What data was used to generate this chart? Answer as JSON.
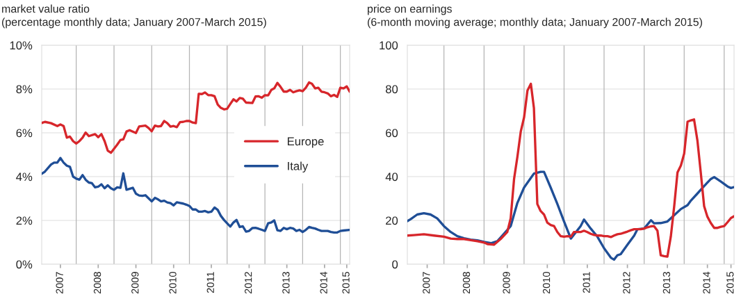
{
  "chart_data": [
    {
      "type": "line",
      "title": "market value ratio",
      "subtitle": "(percentage monthly data; January 2007-March 2015)",
      "xlim": [
        "2007-01",
        "2015-03"
      ],
      "xticks": [
        {
          "value": "2007-07",
          "label": "2007"
        },
        {
          "value": "2008-07",
          "label": "2008"
        },
        {
          "value": "2009-07",
          "label": "2009"
        },
        {
          "value": "2010-07",
          "label": "2010"
        },
        {
          "value": "2011-07",
          "label": "2011"
        },
        {
          "value": "2012-07",
          "label": "2012"
        },
        {
          "value": "2013-07",
          "label": "2013"
        },
        {
          "value": "2014-07",
          "label": "2014"
        },
        {
          "value": "2015-02",
          "label": "2015"
        }
      ],
      "ylim": [
        0,
        10
      ],
      "yticks": [
        {
          "value": 0,
          "label": "0%"
        },
        {
          "value": 2,
          "label": "2%"
        },
        {
          "value": 4,
          "label": "4%"
        },
        {
          "value": 6,
          "label": "6%"
        },
        {
          "value": 8,
          "label": "8%"
        },
        {
          "value": 10,
          "label": "10%"
        }
      ],
      "grid": "y",
      "legend": "center right",
      "ref_lines": [
        {
          "axis": "x",
          "value": "2007-12",
          "color": "#b4b4b4"
        },
        {
          "axis": "x",
          "value": "2008-12",
          "color": "#b4b4b4"
        },
        {
          "axis": "x",
          "value": "2009-12",
          "color": "#b4b4b4"
        },
        {
          "axis": "x",
          "value": "2010-12",
          "color": "#b4b4b4"
        },
        {
          "axis": "x",
          "value": "2011-12",
          "color": "#b4b4b4"
        },
        {
          "axis": "x",
          "value": "2012-12",
          "color": "#b4b4b4"
        },
        {
          "axis": "x",
          "value": "2013-12",
          "color": "#b4b4b4"
        },
        {
          "axis": "x",
          "value": "2014-12",
          "color": "#b4b4b4"
        }
      ],
      "series": [
        {
          "name": "Europe",
          "color": "#d7262b",
          "x": [
            "2007-01",
            "2007-02",
            "2007-04",
            "2007-06",
            "2007-07",
            "2007-08",
            "2007-09",
            "2007-10",
            "2007-11",
            "2007-12",
            "2008-01",
            "2008-02",
            "2008-03",
            "2008-04",
            "2008-06",
            "2008-07",
            "2008-08",
            "2008-09",
            "2008-10",
            "2008-11",
            "2009-01",
            "2009-02",
            "2009-03",
            "2009-04",
            "2009-05",
            "2009-07",
            "2009-08",
            "2009-10",
            "2009-11",
            "2009-12",
            "2010-01",
            "2010-02",
            "2010-03",
            "2010-04",
            "2010-05",
            "2010-06",
            "2010-07",
            "2010-08",
            "2010-09",
            "2010-10",
            "2010-11",
            "2010-12",
            "2011-01",
            "2011-02",
            "2011-03",
            "2011-04",
            "2011-05",
            "2011-06",
            "2011-07",
            "2011-08",
            "2011-09",
            "2011-10",
            "2011-11",
            "2011-12",
            "2012-01",
            "2012-02",
            "2012-03",
            "2012-04",
            "2012-05",
            "2012-06",
            "2012-08",
            "2012-09",
            "2012-10",
            "2012-11",
            "2012-12",
            "2013-01",
            "2013-02",
            "2013-03",
            "2013-04",
            "2013-05",
            "2013-06",
            "2013-07",
            "2013-08",
            "2013-09",
            "2013-10",
            "2013-11",
            "2013-12",
            "2014-01",
            "2014-02",
            "2014-03",
            "2014-04",
            "2014-05",
            "2014-06",
            "2014-07",
            "2014-08",
            "2014-09",
            "2014-10",
            "2014-11",
            "2014-12",
            "2015-01",
            "2015-02",
            "2015-03"
          ],
          "values": [
            6.45,
            6.5,
            6.44,
            6.31,
            6.38,
            6.31,
            5.78,
            5.83,
            5.62,
            5.51,
            5.62,
            5.78,
            6.01,
            5.85,
            5.94,
            5.8,
            5.94,
            5.62,
            5.19,
            5.09,
            5.46,
            5.67,
            5.7,
            6.06,
            6.12,
            5.99,
            6.29,
            6.33,
            6.22,
            6.07,
            6.33,
            6.29,
            6.31,
            6.54,
            6.44,
            6.28,
            6.31,
            6.26,
            6.49,
            6.5,
            6.54,
            6.54,
            6.47,
            6.44,
            7.78,
            7.77,
            7.84,
            7.72,
            7.72,
            7.67,
            7.29,
            7.14,
            7.07,
            7.1,
            7.32,
            7.53,
            7.43,
            7.59,
            7.56,
            7.38,
            7.36,
            7.66,
            7.67,
            7.6,
            7.72,
            7.71,
            7.96,
            8.03,
            8.28,
            8.1,
            7.88,
            7.88,
            7.96,
            7.85,
            7.9,
            7.94,
            7.9,
            8.06,
            8.3,
            8.24,
            8.03,
            8.06,
            7.88,
            7.85,
            7.8,
            7.67,
            7.73,
            7.64,
            8.06,
            8.03,
            8.12,
            7.88
          ]
        },
        {
          "name": "Italy",
          "color": "#1f4e96",
          "x": [
            "2007-01",
            "2007-02",
            "2007-04",
            "2007-05",
            "2007-06",
            "2007-07",
            "2007-08",
            "2007-09",
            "2007-10",
            "2007-11",
            "2007-12",
            "2008-01",
            "2008-02",
            "2008-03",
            "2008-04",
            "2008-05",
            "2008-06",
            "2008-07",
            "2008-08",
            "2008-09",
            "2008-10",
            "2008-11",
            "2008-12",
            "2009-01",
            "2009-02",
            "2009-03",
            "2009-04",
            "2009-06",
            "2009-07",
            "2009-08",
            "2009-09",
            "2009-10",
            "2009-11",
            "2009-12",
            "2010-01",
            "2010-02",
            "2010-03",
            "2010-04",
            "2010-05",
            "2010-06",
            "2010-07",
            "2010-08",
            "2010-09",
            "2010-10",
            "2010-11",
            "2010-12",
            "2011-01",
            "2011-02",
            "2011-03",
            "2011-04",
            "2011-05",
            "2011-06",
            "2011-07",
            "2011-08",
            "2011-09",
            "2011-10",
            "2011-11",
            "2011-12",
            "2012-01",
            "2012-02",
            "2012-03",
            "2012-04",
            "2012-05",
            "2012-06",
            "2012-07",
            "2012-08",
            "2012-09",
            "2012-10",
            "2012-11",
            "2012-12",
            "2013-01",
            "2013-02",
            "2013-03",
            "2013-04",
            "2013-05",
            "2013-06",
            "2013-07",
            "2013-08",
            "2013-09",
            "2013-10",
            "2013-11",
            "2013-12",
            "2014-01",
            "2014-02",
            "2014-03",
            "2014-04",
            "2014-05",
            "2014-06",
            "2014-08",
            "2014-09",
            "2014-10",
            "2014-11",
            "2014-12",
            "2015-01",
            "2015-03"
          ],
          "values": [
            4.13,
            4.23,
            4.55,
            4.64,
            4.64,
            4.85,
            4.64,
            4.5,
            4.45,
            4.0,
            3.91,
            3.86,
            4.07,
            3.86,
            3.73,
            3.7,
            3.51,
            3.54,
            3.65,
            3.47,
            3.6,
            3.47,
            3.4,
            3.51,
            3.49,
            4.15,
            3.4,
            3.49,
            3.22,
            3.14,
            3.12,
            3.15,
            3.01,
            2.87,
            3.03,
            2.96,
            2.87,
            2.9,
            2.82,
            2.79,
            2.69,
            2.83,
            2.8,
            2.77,
            2.72,
            2.66,
            2.5,
            2.5,
            2.4,
            2.4,
            2.43,
            2.37,
            2.4,
            2.59,
            2.48,
            2.21,
            2.02,
            1.87,
            1.72,
            1.91,
            2.02,
            1.7,
            1.73,
            1.49,
            1.52,
            1.65,
            1.66,
            1.62,
            1.57,
            1.52,
            1.87,
            1.91,
            2.0,
            1.55,
            1.52,
            1.66,
            1.6,
            1.66,
            1.63,
            1.52,
            1.57,
            1.47,
            1.57,
            1.7,
            1.66,
            1.63,
            1.57,
            1.52,
            1.52,
            1.47,
            1.45,
            1.45,
            1.52,
            1.54,
            1.57
          ]
        }
      ]
    },
    {
      "type": "line",
      "title": "price on earnings",
      "subtitle": "(6-month moving average; monthly data; January 2007-March 2015)",
      "xlim": [
        "2007-01",
        "2015-03"
      ],
      "xticks": [
        {
          "value": "2007-07",
          "label": "2007"
        },
        {
          "value": "2008-07",
          "label": "2008"
        },
        {
          "value": "2009-07",
          "label": "2009"
        },
        {
          "value": "2010-07",
          "label": "2010"
        },
        {
          "value": "2011-07",
          "label": "2011"
        },
        {
          "value": "2012-07",
          "label": "2012"
        },
        {
          "value": "2013-07",
          "label": "2013"
        },
        {
          "value": "2014-07",
          "label": "2014"
        },
        {
          "value": "2015-02",
          "label": "2015"
        }
      ],
      "ylim": [
        0,
        100
      ],
      "yticks": [
        0,
        20,
        40,
        60,
        80,
        100
      ],
      "grid": "y",
      "ref_lines": [
        {
          "axis": "x",
          "value": "2007-12",
          "color": "#b4b4b4"
        },
        {
          "axis": "x",
          "value": "2008-12",
          "color": "#b4b4b4"
        },
        {
          "axis": "x",
          "value": "2009-12",
          "color": "#b4b4b4"
        },
        {
          "axis": "x",
          "value": "2010-12",
          "color": "#b4b4b4"
        },
        {
          "axis": "x",
          "value": "2011-12",
          "color": "#b4b4b4"
        },
        {
          "axis": "x",
          "value": "2012-12",
          "color": "#b4b4b4"
        },
        {
          "axis": "x",
          "value": "2013-12",
          "color": "#b4b4b4"
        },
        {
          "axis": "x",
          "value": "2014-12",
          "color": "#b4b4b4"
        }
      ],
      "series": [
        {
          "color": "#1f4e96",
          "x": [
            "2007-01",
            "2007-02",
            "2007-04",
            "2007-06",
            "2007-08",
            "2007-10",
            "2007-12",
            "2008-02",
            "2008-04",
            "2008-06",
            "2008-08",
            "2008-10",
            "2008-12",
            "2009-02",
            "2009-04",
            "2009-06",
            "2009-08",
            "2009-10",
            "2009-12",
            "2010-03",
            "2010-05",
            "2010-06",
            "2010-08",
            "2010-10",
            "2010-12",
            "2011-02",
            "2011-05",
            "2011-06",
            "2011-08",
            "2011-10",
            "2011-12",
            "2012-02",
            "2012-03",
            "2012-04",
            "2012-05",
            "2012-07",
            "2012-09",
            "2012-10",
            "2012-12",
            "2013-02",
            "2013-03",
            "2013-05",
            "2013-07",
            "2013-09",
            "2013-11",
            "2014-01",
            "2014-02",
            "2014-04",
            "2014-06",
            "2014-08",
            "2014-09",
            "2014-11",
            "2015-01",
            "2015-02",
            "2015-03"
          ],
          "values": [
            19.7,
            20.6,
            22.7,
            23.3,
            22.7,
            20.9,
            17.4,
            14.7,
            12.8,
            11.9,
            11.2,
            10.9,
            10.2,
            9.6,
            10.5,
            13.9,
            17.4,
            28,
            35,
            41.4,
            42.2,
            42.2,
            35,
            27.5,
            19.5,
            11.7,
            17.4,
            20.4,
            16.3,
            12.6,
            7.3,
            3.0,
            2.1,
            4.1,
            4.6,
            8.9,
            13.1,
            16,
            16.3,
            20.1,
            18.7,
            18.8,
            19.5,
            22.4,
            25.2,
            27,
            29.1,
            32.3,
            35.7,
            38.9,
            39.8,
            37.7,
            35.5,
            34.8,
            35.2
          ]
        },
        {
          "color": "#d7262b",
          "x": [
            "2007-01",
            "2007-03",
            "2007-06",
            "2007-09",
            "2007-12",
            "2008-02",
            "2008-04",
            "2008-06",
            "2008-08",
            "2008-10",
            "2008-12",
            "2009-01",
            "2009-03",
            "2009-05",
            "2009-07",
            "2009-08",
            "2009-09",
            "2009-10",
            "2009-11",
            "2009-12",
            "2010-01",
            "2010-02",
            "2010-03",
            "2010-04",
            "2010-05",
            "2010-06",
            "2010-07",
            "2010-08",
            "2010-09",
            "2010-10",
            "2010-11",
            "2010-12",
            "2011-01",
            "2011-02",
            "2011-03",
            "2011-04",
            "2011-05",
            "2011-06",
            "2011-07",
            "2011-08",
            "2011-09",
            "2011-10",
            "2011-11",
            "2011-12",
            "2012-01",
            "2012-02",
            "2012-03",
            "2012-04",
            "2012-05",
            "2012-06",
            "2012-07",
            "2012-08",
            "2012-09",
            "2012-10",
            "2012-11",
            "2012-12",
            "2013-01",
            "2013-02",
            "2013-03",
            "2013-04",
            "2013-05",
            "2013-06",
            "2013-07",
            "2013-08",
            "2013-09",
            "2013-10",
            "2013-11",
            "2013-12",
            "2014-01",
            "2014-02",
            "2014-03",
            "2014-04",
            "2014-05",
            "2014-06",
            "2014-07",
            "2014-08",
            "2014-09",
            "2014-10",
            "2014-11",
            "2014-12",
            "2015-01",
            "2015-02",
            "2015-03"
          ],
          "values": [
            13.1,
            13.3,
            13.7,
            13.1,
            12.6,
            11.7,
            11.5,
            11.5,
            11.0,
            10.5,
            9.9,
            9.2,
            8.9,
            11.5,
            14.7,
            21,
            39,
            49,
            60.6,
            67,
            79.3,
            82.4,
            71.3,
            27.5,
            24.3,
            22.7,
            19,
            17.9,
            17.4,
            14.7,
            12.8,
            12.6,
            12.8,
            12.6,
            14.7,
            14.7,
            14.7,
            15.3,
            14.7,
            13.9,
            13.4,
            13.1,
            13.1,
            12.8,
            12.8,
            12.4,
            13.1,
            13.7,
            13.9,
            14.4,
            14.9,
            15.5,
            16,
            16,
            16,
            16.3,
            16.9,
            17.3,
            17.4,
            15.3,
            4.1,
            3.7,
            3.5,
            12.6,
            26.5,
            41.9,
            45.1,
            50.5,
            65.1,
            65.7,
            66.1,
            56.4,
            42,
            26.5,
            21.7,
            18.8,
            16.6,
            16.6,
            17.1,
            17.4,
            19.2,
            21.1,
            21.9
          ]
        }
      ]
    }
  ]
}
